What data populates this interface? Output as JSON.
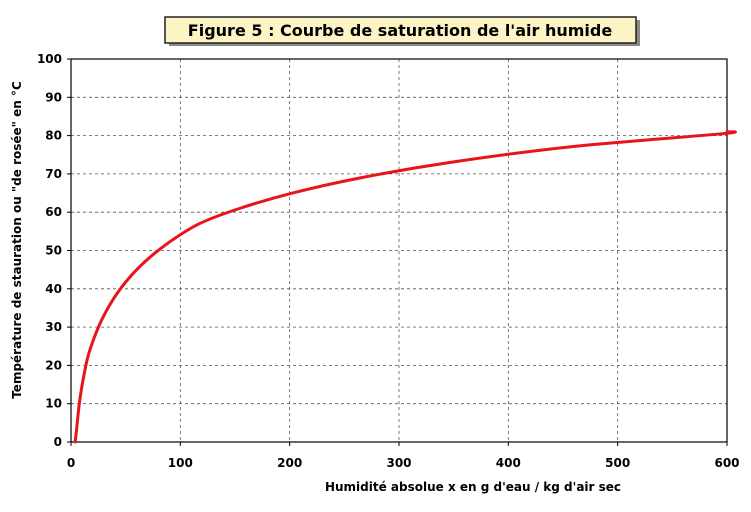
{
  "chart_data": {
    "type": "line",
    "title": "Figure 5 : Courbe de saturation de l'air humide",
    "xlabel": "Humidité absolue x en g d'eau / kg d'air sec",
    "ylabel": "Température de stauration ou \"de rosée\" en °C",
    "xlim": [
      0,
      600
    ],
    "ylim": [
      0,
      100
    ],
    "x_ticks": [
      "0",
      "100",
      "200",
      "300",
      "400",
      "500",
      "600"
    ],
    "y_ticks": [
      "0",
      "10",
      "20",
      "30",
      "40",
      "50",
      "60",
      "70",
      "80",
      "90",
      "100"
    ],
    "grid": true,
    "series": [
      {
        "color": "#e8141b",
        "x": [
          3.8,
          5,
          7.6,
          10.9,
          15.2,
          20.9,
          28.3,
          38,
          50.7,
          67.3,
          89,
          117.4,
          154.3,
          202.5,
          265.3,
          347,
          454.3,
          595.9,
          600
        ],
        "y": [
          0,
          3,
          10,
          16,
          22,
          27,
          32,
          37,
          42,
          47,
          52,
          57,
          61,
          65,
          69,
          73,
          77,
          80.5,
          81
        ]
      }
    ]
  }
}
